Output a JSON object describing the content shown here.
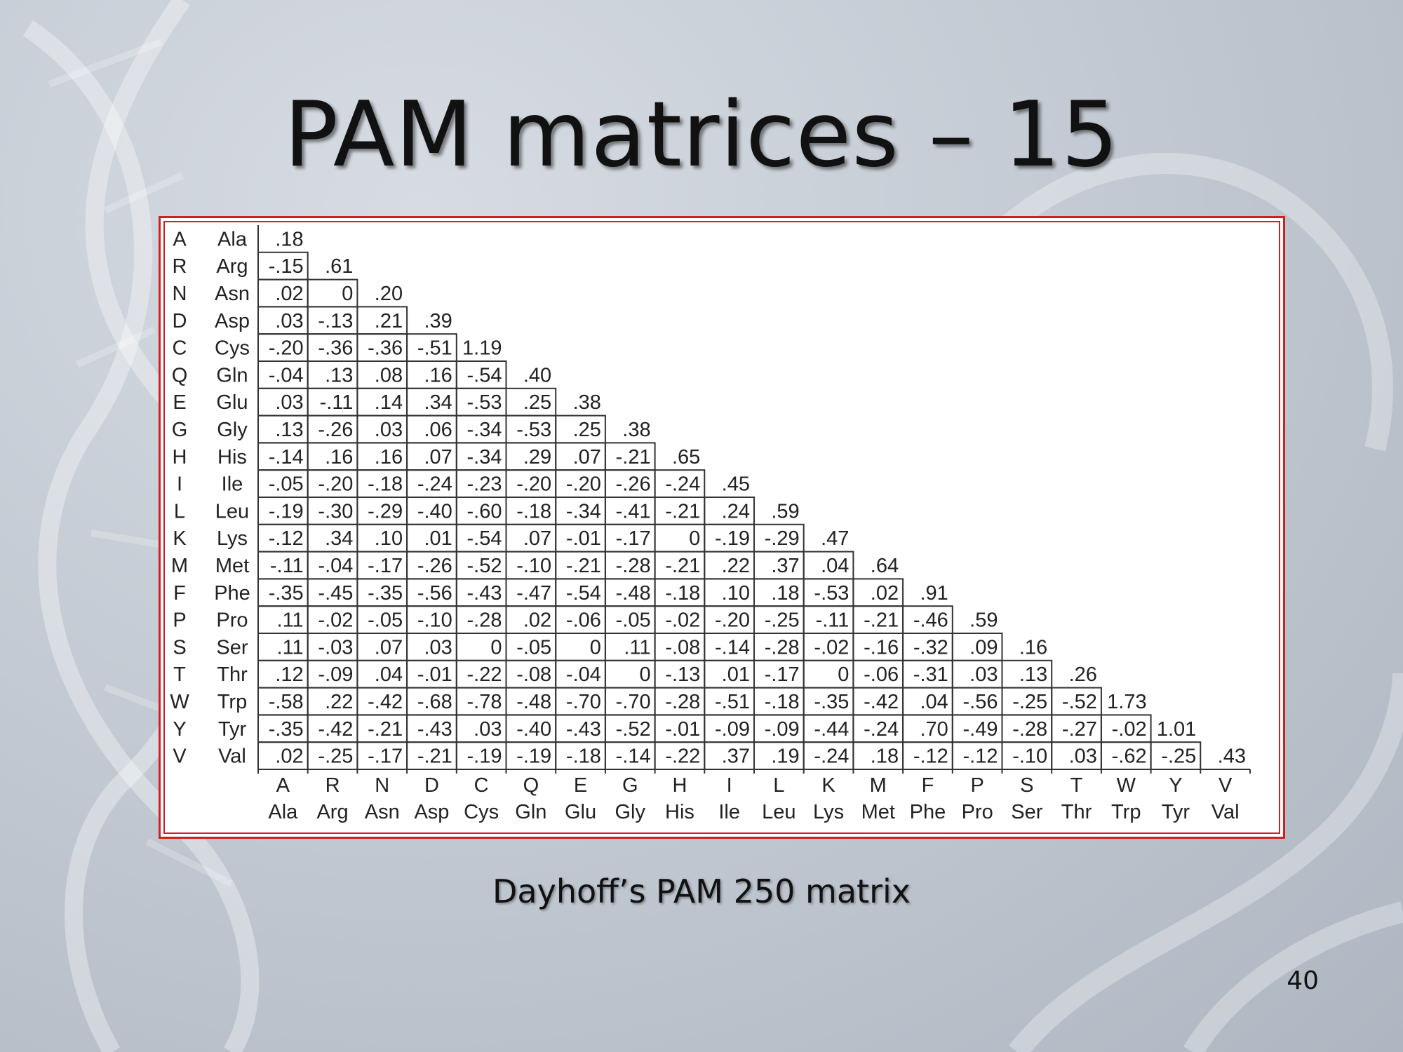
{
  "slide": {
    "title": "PAM matrices – 15",
    "caption": "Dayhoff’s PAM 250 matrix",
    "page_number": "40"
  },
  "matrix": {
    "codes": [
      "A",
      "R",
      "N",
      "D",
      "C",
      "Q",
      "E",
      "G",
      "H",
      "I",
      "L",
      "K",
      "M",
      "F",
      "P",
      "S",
      "T",
      "W",
      "Y",
      "V"
    ],
    "names": [
      "Ala",
      "Arg",
      "Asn",
      "Asp",
      "Cys",
      "Gln",
      "Glu",
      "Gly",
      "His",
      "Ile",
      "Leu",
      "Lys",
      "Met",
      "Phe",
      "Pro",
      "Ser",
      "Thr",
      "Trp",
      "Tyr",
      "Val"
    ],
    "rows": [
      [
        ".18"
      ],
      [
        "-.15",
        ".61"
      ],
      [
        ".02",
        "0",
        ".20"
      ],
      [
        ".03",
        "-.13",
        ".21",
        ".39"
      ],
      [
        "-.20",
        "-.36",
        "-.36",
        "-.51",
        "1.19"
      ],
      [
        "-.04",
        ".13",
        ".08",
        ".16",
        "-.54",
        ".40"
      ],
      [
        ".03",
        "-.11",
        ".14",
        ".34",
        "-.53",
        ".25",
        ".38"
      ],
      [
        ".13",
        "-.26",
        ".03",
        ".06",
        "-.34",
        "-.53",
        ".25",
        ".38"
      ],
      [
        "-.14",
        ".16",
        ".16",
        ".07",
        "-.34",
        ".29",
        ".07",
        "-.21",
        ".65"
      ],
      [
        "-.05",
        "-.20",
        "-.18",
        "-.24",
        "-.23",
        "-.20",
        "-.20",
        "-.26",
        "-.24",
        ".45"
      ],
      [
        "-.19",
        "-.30",
        "-.29",
        "-.40",
        "-.60",
        "-.18",
        "-.34",
        "-.41",
        "-.21",
        ".24",
        ".59"
      ],
      [
        "-.12",
        ".34",
        ".10",
        ".01",
        "-.54",
        ".07",
        "-.01",
        "-.17",
        "0",
        "-.19",
        "-.29",
        ".47"
      ],
      [
        "-.11",
        "-.04",
        "-.17",
        "-.26",
        "-.52",
        "-.10",
        "-.21",
        "-.28",
        "-.21",
        ".22",
        ".37",
        ".04",
        ".64"
      ],
      [
        "-.35",
        "-.45",
        "-.35",
        "-.56",
        "-.43",
        "-.47",
        "-.54",
        "-.48",
        "-.18",
        ".10",
        ".18",
        "-.53",
        ".02",
        ".91"
      ],
      [
        ".11",
        "-.02",
        "-.05",
        "-.10",
        "-.28",
        ".02",
        "-.06",
        "-.05",
        "-.02",
        "-.20",
        "-.25",
        "-.11",
        "-.21",
        "-.46",
        ".59"
      ],
      [
        ".11",
        "-.03",
        ".07",
        ".03",
        "0",
        "-.05",
        "0",
        ".11",
        "-.08",
        "-.14",
        "-.28",
        "-.02",
        "-.16",
        "-.32",
        ".09",
        ".16"
      ],
      [
        ".12",
        "-.09",
        ".04",
        "-.01",
        "-.22",
        "-.08",
        "-.04",
        "0",
        "-.13",
        ".01",
        "-.17",
        "0",
        "-.06",
        "-.31",
        ".03",
        ".13",
        ".26"
      ],
      [
        "-.58",
        ".22",
        "-.42",
        "-.68",
        "-.78",
        "-.48",
        "-.70",
        "-.70",
        "-.28",
        "-.51",
        "-.18",
        "-.35",
        "-.42",
        ".04",
        "-.56",
        "-.25",
        "-.52",
        "1.73"
      ],
      [
        "-.35",
        "-.42",
        "-.21",
        "-.43",
        ".03",
        "-.40",
        "-.43",
        "-.52",
        "-.01",
        "-.09",
        "-.09",
        "-.44",
        "-.24",
        ".70",
        "-.49",
        "-.28",
        "-.27",
        "-.02",
        "1.01"
      ],
      [
        ".02",
        "-.25",
        "-.17",
        "-.21",
        "-.19",
        "-.19",
        "-.18",
        "-.14",
        "-.22",
        ".37",
        ".19",
        "-.24",
        ".18",
        "-.12",
        "-.12",
        "-.10",
        ".03",
        "-.62",
        "-.25",
        ".43"
      ]
    ]
  }
}
